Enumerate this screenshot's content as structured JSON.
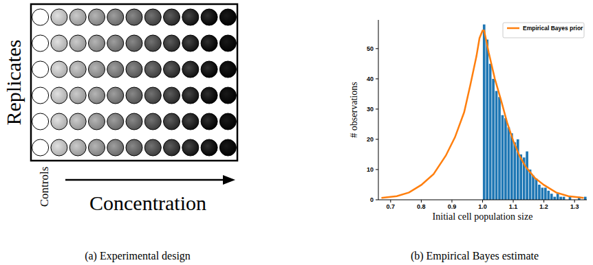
{
  "diagram": {
    "title": "(a) Experimental design",
    "row_label": "Replicates",
    "axis_label": "Concentration",
    "control_label": "Controls",
    "rows": 6,
    "columns": 11
  },
  "chart_data": {
    "type": "histogram",
    "title": "(b) Empirical Bayes estimate",
    "x_label": "Initial cell population size",
    "y_label": "# observations",
    "bins": [
      1.0,
      1.01,
      1.02,
      1.03,
      1.04,
      1.05,
      1.06,
      1.07,
      1.08,
      1.09,
      1.1,
      1.11,
      1.12,
      1.13,
      1.14,
      1.15,
      1.16,
      1.17,
      1.18,
      1.19,
      1.2,
      1.21,
      1.22,
      1.23,
      1.24,
      1.25,
      1.26,
      1.27,
      1.28,
      1.29,
      1.3,
      1.31,
      1.32,
      1.33,
      1.34
    ],
    "series": [
      {
        "type": "bar",
        "color": "#1f77b4",
        "values": [
          58,
          53,
          45,
          40,
          36,
          34,
          28,
          27,
          24,
          22,
          19,
          20,
          15,
          14,
          16,
          10,
          8,
          7,
          5,
          4,
          4,
          3,
          2,
          1,
          2,
          1,
          1,
          0,
          1,
          0,
          0,
          1,
          0,
          1
        ]
      },
      {
        "type": "line",
        "name": "Empirical Bayes prior",
        "color": "#ff7f0e",
        "x": [
          0.67,
          0.72,
          0.76,
          0.8,
          0.84,
          0.88,
          0.91,
          0.94,
          0.96,
          0.98,
          0.99,
          1.0,
          1.005,
          1.02,
          1.04,
          1.06,
          1.08,
          1.1,
          1.12,
          1.14,
          1.17,
          1.2,
          1.24,
          1.28,
          1.33
        ],
        "values": [
          0.6,
          1.2,
          2.4,
          4.9,
          8.5,
          14.6,
          20.7,
          29,
          38,
          47.5,
          53.5,
          56,
          56,
          48.7,
          40,
          33,
          25.6,
          19.5,
          14.6,
          11,
          7.3,
          4.9,
          2.4,
          1.2,
          0.6
        ]
      }
    ],
    "xlim": [
      0.66,
      1.34
    ],
    "ylim": [
      0,
      59.5
    ],
    "xticks": [
      0.7,
      0.8,
      0.9,
      {
        "value": 1,
        "label": "1.0"
      },
      1.1,
      1.2,
      1.3
    ],
    "yticks": [
      0,
      10,
      20,
      30,
      40,
      50
    ],
    "legend": "upper right",
    "grid": false
  }
}
